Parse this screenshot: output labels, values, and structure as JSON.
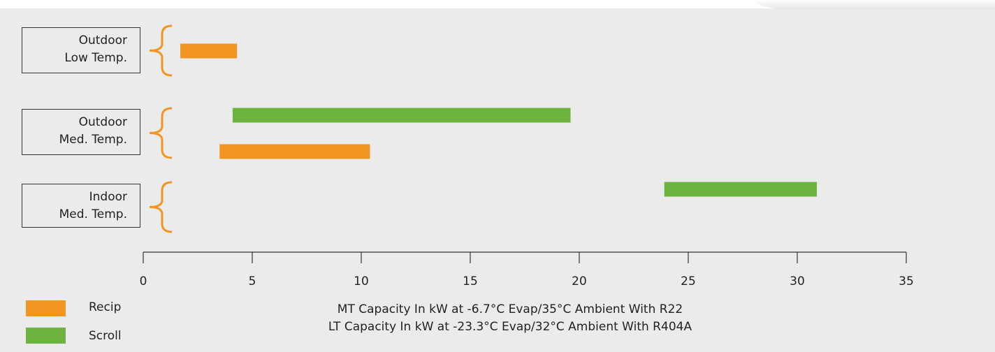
{
  "chart_data": {
    "type": "bar",
    "orientation": "horizontal-range",
    "xlim": [
      0,
      35
    ],
    "xticks": [
      0,
      5,
      10,
      15,
      20,
      25,
      30,
      35
    ],
    "xlabel_lines": [
      "MT Capacity In kW at -6.7°C Evap/35°C Ambient With R22",
      "LT Capacity In kW at -23.3°C Evap/32°C Ambient With R404A"
    ],
    "categories": [
      {
        "lines": [
          "Outdoor",
          "Low Temp."
        ]
      },
      {
        "lines": [
          "Outdoor",
          "Med. Temp."
        ]
      },
      {
        "lines": [
          "Indoor",
          "Med. Temp."
        ]
      }
    ],
    "series": [
      {
        "name": "Recip",
        "color": "#f39621",
        "ranges": [
          {
            "category": 0,
            "start": 1.7,
            "end": 4.3
          },
          {
            "category": 1,
            "start": 3.5,
            "end": 10.4
          }
        ]
      },
      {
        "name": "Scroll",
        "color": "#6db33f",
        "ranges": [
          {
            "category": 1,
            "start": 4.1,
            "end": 19.6
          },
          {
            "category": 2,
            "start": 23.9,
            "end": 30.9
          }
        ]
      }
    ],
    "bracket_color": "#f39621",
    "grid": false,
    "legend_position": "bottom-left"
  }
}
